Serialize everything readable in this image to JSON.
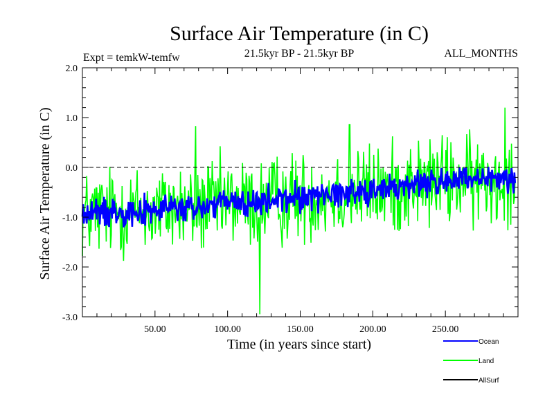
{
  "chart_data": {
    "type": "line",
    "title": "Surface Air Temperature (in C)",
    "subtitle_left": "Expt = temkW-temfw",
    "subtitle_center": "21.5kyr BP - 21.5kyr BP",
    "subtitle_right": "ALL_MONTHS",
    "xlabel": "Time (in years since start)",
    "ylabel": "Surface Air Temperature (in C)",
    "xlim": [
      0,
      300
    ],
    "ylim": [
      -3.0,
      2.0
    ],
    "x_ticks": [
      {
        "value": 50,
        "label": "50.00"
      },
      {
        "value": 100,
        "label": "100.00"
      },
      {
        "value": 150,
        "label": "150.00"
      },
      {
        "value": 200,
        "label": "200.00"
      },
      {
        "value": 250,
        "label": "250.00"
      }
    ],
    "y_ticks": [
      {
        "value": 2.0,
        "label": "2.0"
      },
      {
        "value": 1.0,
        "label": "1.0"
      },
      {
        "value": 0.0,
        "label": "0.0"
      },
      {
        "value": -1.0,
        "label": "-1.0"
      },
      {
        "value": -2.0,
        "label": "-2.0"
      },
      {
        "value": -3.0,
        "label": "-3.0"
      }
    ],
    "zero_line": 0.0,
    "series": [
      {
        "name": "Land",
        "color": "#00ff00",
        "x": [
          0,
          15,
          30,
          45,
          60,
          75,
          90,
          105,
          120,
          135,
          150,
          165,
          180,
          195,
          210,
          225,
          240,
          255,
          270,
          285,
          298
        ],
        "values": [
          -0.95,
          -0.9,
          -0.85,
          -0.9,
          -0.8,
          -0.85,
          -0.75,
          -0.7,
          -0.75,
          -0.65,
          -0.6,
          -0.55,
          -0.5,
          -0.45,
          -0.45,
          -0.35,
          -0.3,
          -0.25,
          -0.3,
          -0.25,
          -0.2
        ],
        "noise_amplitude": 0.75,
        "extremes": [
          {
            "x": 122,
            "value": -2.95
          },
          {
            "x": 291,
            "value": 1.2
          },
          {
            "x": 78,
            "value": 0.83
          },
          {
            "x": 184,
            "value": 0.86
          }
        ]
      },
      {
        "name": "Ocean",
        "color": "#0000ff",
        "x": [
          0,
          15,
          30,
          45,
          60,
          75,
          90,
          105,
          120,
          135,
          150,
          165,
          180,
          195,
          210,
          225,
          240,
          255,
          270,
          285,
          298
        ],
        "values": [
          -0.95,
          -0.9,
          -0.85,
          -0.9,
          -0.8,
          -0.85,
          -0.75,
          -0.7,
          -0.75,
          -0.65,
          -0.6,
          -0.55,
          -0.5,
          -0.45,
          -0.45,
          -0.35,
          -0.3,
          -0.25,
          -0.3,
          -0.25,
          -0.2
        ],
        "noise_amplitude": 0.25
      },
      {
        "name": "AllSurf",
        "color": "#000000",
        "x": [],
        "values": []
      }
    ],
    "legend": [
      {
        "name": "Ocean",
        "color": "#0000ff"
      },
      {
        "name": "Land",
        "color": "#00ff00"
      },
      {
        "name": "AllSurf",
        "color": "#000000"
      }
    ]
  }
}
